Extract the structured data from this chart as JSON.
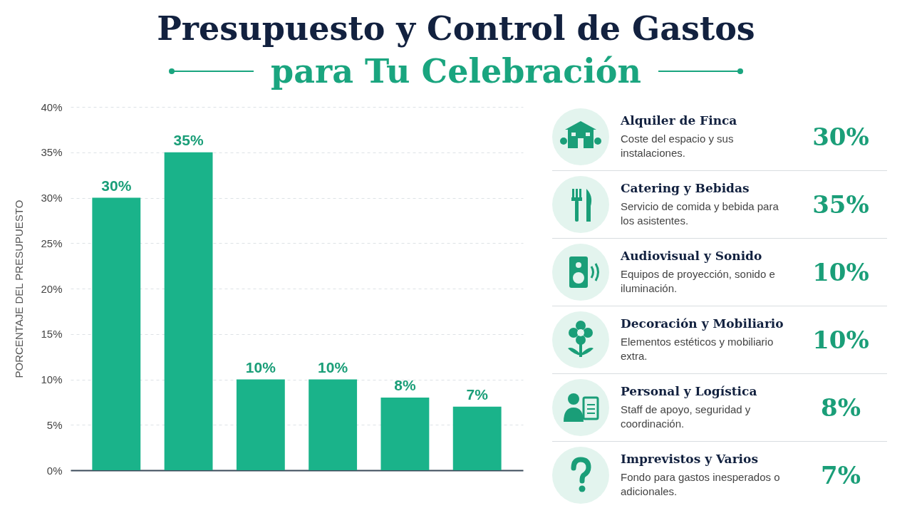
{
  "chart_data": [
    {
      "type": "bar",
      "title": "Presupuesto y Control de Gastos",
      "subtitle": "para Tu Celebración",
      "ylabel": "PORCENTAJE DEL PRESUPUESTO",
      "categories": [
        null,
        null,
        null,
        null,
        null,
        null
      ],
      "values": [
        30,
        35,
        10,
        10,
        8,
        7
      ],
      "value_labels": [
        "30%",
        "35%",
        "10%",
        "10%",
        "8%",
        "7%"
      ],
      "color": "#1ab38a",
      "ylim": [
        0,
        40
      ],
      "yticks": [
        {
          "value": 0,
          "label": "0%"
        },
        {
          "value": 5,
          "label": "5%"
        },
        {
          "value": 10,
          "label": "10%"
        },
        {
          "value": 15,
          "label": "15%"
        },
        {
          "value": 20,
          "label": "20%"
        },
        {
          "value": 25,
          "label": "25%"
        },
        {
          "value": 30,
          "label": "30%"
        },
        {
          "value": 35,
          "label": "35%"
        },
        {
          "value": 40,
          "label": "40%"
        }
      ],
      "grid": "y",
      "tick_labels": "y"
    },
    {
      "type": "other",
      "categories": [
        "Alquiler de Finca",
        "Catering y Bebidas",
        "Audiovisual y Sonido",
        "Decoración y Mobiliario",
        "Personal y Logística",
        "Imprevistos y Varios"
      ],
      "annotations": [
        "Coste del espacio y sus instalaciones.",
        "Servicio de comida y bebida para los asistentes.",
        "Equipos de proyección, sonido e iluminación.",
        "Elementos estéticos y mobiliario extra.",
        "Staff de apoyo, seguridad y coordinación.",
        "Fondo para gastos inesperados o adicionales."
      ],
      "value_labels": [
        "30%",
        "35%",
        "10%",
        "10%",
        "8%",
        "7%"
      ]
    }
  ]
}
